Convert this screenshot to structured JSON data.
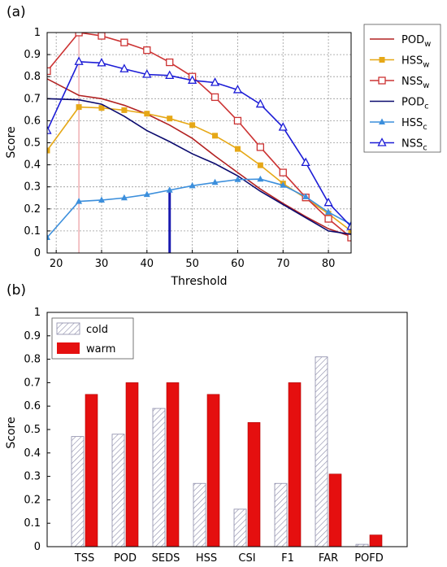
{
  "panel_labels": [
    "(a)",
    "(b)"
  ],
  "chart_data": [
    {
      "type": "line",
      "panel": "(a)",
      "xlabel": "Threshold",
      "ylabel": "Score",
      "xlim": [
        18,
        85
      ],
      "ylim": [
        0,
        1
      ],
      "xticks": [
        20,
        30,
        40,
        50,
        60,
        70,
        80
      ],
      "yticks": [
        0,
        0.1,
        0.2,
        0.3,
        0.4,
        0.5,
        0.6,
        0.7,
        0.8,
        0.9,
        1
      ],
      "grid": true,
      "legend_position": "right",
      "x": [
        18,
        25,
        30,
        35,
        40,
        45,
        50,
        55,
        60,
        65,
        70,
        75,
        80,
        85
      ],
      "series": [
        {
          "name": "POD",
          "sub": "w",
          "color": "#b22222",
          "marker": "none",
          "values": [
            0.79,
            0.715,
            0.7,
            0.67,
            0.63,
            0.58,
            0.52,
            0.44,
            0.365,
            0.29,
            0.225,
            0.165,
            0.11,
            0.075
          ]
        },
        {
          "name": "HSS",
          "sub": "w",
          "color": "#e6a817",
          "marker": "square-filled",
          "values": [
            0.465,
            0.662,
            0.658,
            0.648,
            0.632,
            0.61,
            0.58,
            0.532,
            0.472,
            0.398,
            0.315,
            0.248,
            0.178,
            0.1
          ]
        },
        {
          "name": "NSS",
          "sub": "w",
          "color": "#cc3333",
          "marker": "square-open",
          "values": [
            0.825,
            1.0,
            0.985,
            0.955,
            0.92,
            0.865,
            0.8,
            0.707,
            0.6,
            0.48,
            0.365,
            0.252,
            0.155,
            0.07
          ]
        },
        {
          "name": "POD",
          "sub": "c",
          "color": "#0a0a6e",
          "marker": "none",
          "values": [
            0.7,
            0.695,
            0.675,
            0.62,
            0.555,
            0.505,
            0.45,
            0.405,
            0.35,
            0.28,
            0.22,
            0.16,
            0.1,
            0.085
          ]
        },
        {
          "name": "HSS",
          "sub": "c",
          "color": "#3c8fdc",
          "marker": "triangle-filled",
          "values": [
            0.07,
            0.234,
            0.24,
            0.25,
            0.265,
            0.285,
            0.305,
            0.32,
            0.333,
            0.335,
            0.307,
            0.255,
            0.185,
            0.13
          ]
        },
        {
          "name": "NSS",
          "sub": "c",
          "color": "#1c1cd6",
          "marker": "triangle-open",
          "values": [
            0.555,
            0.868,
            0.862,
            0.835,
            0.81,
            0.805,
            0.783,
            0.773,
            0.74,
            0.675,
            0.57,
            0.41,
            0.228,
            0.12
          ]
        }
      ],
      "vlines": [
        {
          "x": 25,
          "color": "#e8898e",
          "from": 0,
          "to": 1
        },
        {
          "x": 45,
          "color": "#1a1ab0",
          "from": 0,
          "to": 0.285
        }
      ]
    },
    {
      "type": "bar",
      "panel": "(b)",
      "ylabel": "Score",
      "xlabel": "",
      "ylim": [
        0,
        1
      ],
      "yticks": [
        0,
        0.1,
        0.2,
        0.3,
        0.4,
        0.5,
        0.6,
        0.7,
        0.8,
        0.9,
        1
      ],
      "grid": false,
      "legend_position": "top-left",
      "categories": [
        "TSS",
        "POD",
        "SEDS",
        "HSS",
        "CSI",
        "F1",
        "FAR",
        "POFD"
      ],
      "series": [
        {
          "name": "cold",
          "fill": "hatch",
          "values": [
            0.47,
            0.48,
            0.59,
            0.27,
            0.16,
            0.27,
            0.81,
            0.01
          ]
        },
        {
          "name": "warm",
          "fill": "#e50f0f",
          "values": [
            0.65,
            0.7,
            0.7,
            0.65,
            0.53,
            0.7,
            0.31,
            0.05
          ]
        }
      ]
    }
  ]
}
